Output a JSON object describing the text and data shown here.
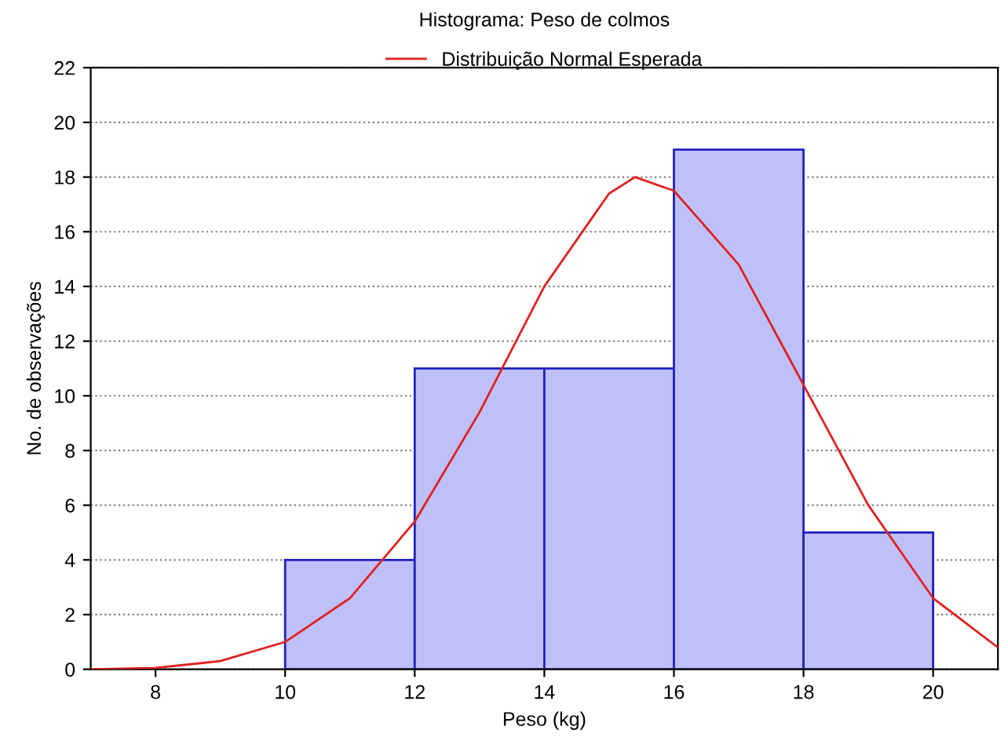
{
  "chart_data": {
    "type": "histogram",
    "title": "Histograma: Peso de colmos",
    "xlabel": "Peso (kg)",
    "ylabel": "No. de observações",
    "bins": [
      10,
      12,
      14,
      16,
      18,
      20
    ],
    "series": [
      {
        "color": "#c0c0f8",
        "values": [
          4,
          11,
          11,
          19,
          5
        ]
      },
      {
        "type": "line",
        "name": "Distribuição Normal Esperada",
        "color": "#e02020",
        "x": [
          7,
          8,
          9,
          10,
          11,
          12,
          13,
          14,
          15,
          15.4,
          16,
          17,
          18,
          19,
          20,
          21
        ],
        "values": [
          0.0,
          0.05,
          0.3,
          1.0,
          2.6,
          5.4,
          9.4,
          14.0,
          17.4,
          18.0,
          17.5,
          14.8,
          10.4,
          6.0,
          2.6,
          0.8
        ]
      }
    ],
    "xlim": [
      7,
      21
    ],
    "xticks": [
      8,
      10,
      12,
      14,
      16,
      18,
      20
    ],
    "ylim": [
      0,
      22
    ],
    "yticks": [
      0,
      2,
      4,
      6,
      8,
      10,
      12,
      14,
      16,
      18,
      20,
      22
    ],
    "grid": "y",
    "legend": "top"
  }
}
